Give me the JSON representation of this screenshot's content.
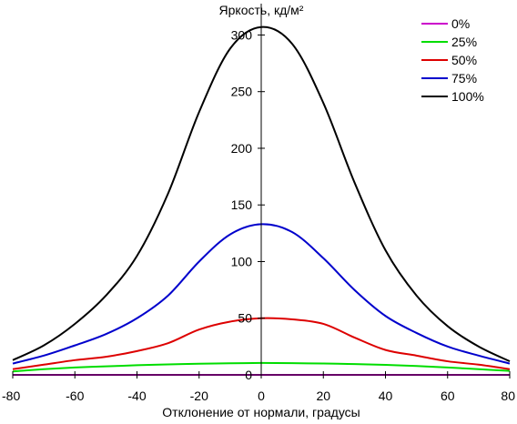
{
  "chart_data": {
    "type": "line",
    "ylabel": "Яркость, кд/м²",
    "xlabel": "Отклонение от нормали, градусы",
    "xlim": [
      -80,
      80
    ],
    "ylim": [
      0,
      310
    ],
    "xticks": [
      -80,
      -60,
      -40,
      -20,
      0,
      20,
      40,
      60,
      80
    ],
    "yticks": [
      0,
      50,
      100,
      150,
      200,
      250,
      300
    ],
    "legend_position": "top-right",
    "grid": false,
    "x": [
      -80,
      -70,
      -60,
      -50,
      -40,
      -30,
      -20,
      -10,
      0,
      10,
      20,
      30,
      40,
      50,
      60,
      70,
      80
    ],
    "series": [
      {
        "name": "0%",
        "color": "#cc00cc",
        "values": [
          0,
          0,
          0,
          0,
          0,
          0,
          0,
          0,
          0,
          0,
          0,
          0,
          0,
          0,
          0,
          0,
          0
        ]
      },
      {
        "name": "25%",
        "color": "#00dd00",
        "values": [
          3,
          5,
          6.5,
          7.5,
          8.5,
          9.2,
          9.8,
          10.2,
          10.5,
          10.3,
          10,
          9.5,
          8.8,
          7.8,
          6.5,
          5,
          3.5
        ]
      },
      {
        "name": "50%",
        "color": "#dd0000",
        "values": [
          5,
          9,
          13,
          16,
          21,
          28,
          40,
          47,
          50,
          49,
          45,
          33,
          22,
          17,
          12,
          9,
          5
        ]
      },
      {
        "name": "75%",
        "color": "#0000cc",
        "values": [
          10,
          17,
          26,
          36,
          50,
          70,
          100,
          124,
          133,
          126,
          103,
          75,
          52,
          37,
          25,
          17,
          10
        ]
      },
      {
        "name": "100%",
        "color": "#000000",
        "values": [
          13,
          26,
          45,
          70,
          105,
          160,
          232,
          288,
          307,
          292,
          240,
          170,
          110,
          70,
          43,
          25,
          12
        ]
      }
    ]
  }
}
